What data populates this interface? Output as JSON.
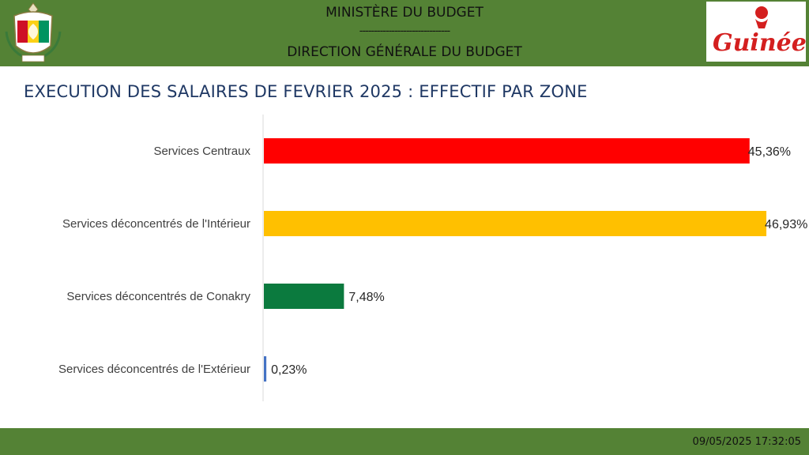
{
  "header": {
    "ministry": "MINISTÈRE DU BUDGET",
    "separator": "-------------------------------",
    "direction": "DIRECTION GÉNÉRALE DU BUDGET",
    "logo_text": "Guinée"
  },
  "title": "EXECUTION DES SALAIRES DE FEVRIER 2025 : EFFECTIF PAR ZONE",
  "colors": {
    "band": "#548235",
    "title": "#1f3864"
  },
  "chart_data": {
    "type": "bar",
    "orientation": "horizontal",
    "categories": [
      "Services Centraux",
      "Services déconcentrés de l'Intérieur",
      "Services déconcentrés de Conakry",
      "Services déconcentrés de l'Extérieur"
    ],
    "values": [
      45.36,
      46.93,
      7.48,
      0.23
    ],
    "labels": [
      "45,36%",
      "46,93%",
      "7,48%",
      "0,23%"
    ],
    "colors": [
      "#ff0000",
      "#ffc000",
      "#0b7a3e",
      "#4472c4"
    ],
    "unit": "%",
    "xlim": [
      0,
      47
    ],
    "grid": false,
    "legend": "none"
  },
  "footer": {
    "timestamp": "09/05/2025 17:32:05"
  }
}
